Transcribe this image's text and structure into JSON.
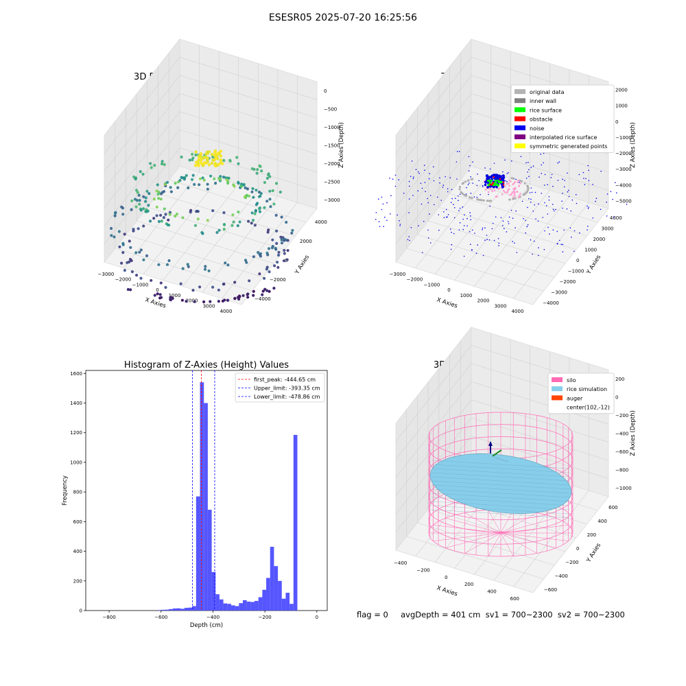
{
  "figure": {
    "suptitle": "ESESR05 2025-07-20 16:25:56"
  },
  "chart_data": [
    {
      "type": "scatter",
      "projection": "3d",
      "title": "3D Plot of Silo Interior(row data)",
      "xlabel": "X Axies",
      "ylabel": "Y Axies",
      "zlabel": "Z Axies (Depth)",
      "xticks": [
        "−3000",
        "−2000",
        "−1000",
        "0",
        "1000",
        "2000",
        "3000",
        "4000"
      ],
      "yticks": [
        "−4000",
        "−2000",
        "0",
        "2000",
        "4000"
      ],
      "zticks": [
        "0",
        "−500",
        "−1000",
        "−1500",
        "−2000",
        "−2500",
        "−3000"
      ],
      "xlim": [
        -3500,
        4500
      ],
      "ylim": [
        -4500,
        4500
      ],
      "zlim": [
        -3500,
        0
      ],
      "colormap": "viridis",
      "grid": true
    },
    {
      "type": "scatter",
      "projection": "3d",
      "title": "3D classify of Silo Interior",
      "ylabel": "Y Axies",
      "xlabel": "X Axies",
      "zlabel": "Z Axies (Depth)",
      "xticks": [
        "−3000",
        "−2000",
        "−1000",
        "0",
        "1000",
        "2000",
        "3000",
        "4000"
      ],
      "yticks": [
        "−4000",
        "−3000",
        "−2000",
        "−1000",
        "0",
        "1000",
        "2000",
        "3000",
        "4000"
      ],
      "zticks": [
        "2000",
        "1000",
        "0",
        "−1000",
        "−2000",
        "−3000",
        "−4000",
        "−5000"
      ],
      "legend_position": "top-right",
      "legend": [
        {
          "label": "original data",
          "color": "#b3b3b3"
        },
        {
          "label": "inner wall",
          "color": "#808080"
        },
        {
          "label": "rice surface",
          "color": "#00ff00"
        },
        {
          "label": "obstacle",
          "color": "#ff0000"
        },
        {
          "label": "noise",
          "color": "#0000ee"
        },
        {
          "label": "interpolated rice surface",
          "color": "#800080"
        },
        {
          "label": "symmetric generated points",
          "color": "#ffff00"
        }
      ],
      "grid": true
    },
    {
      "type": "bar",
      "title": "Histogram of Z-Axies (Height) Values",
      "xlabel": "Depth (cm)",
      "ylabel": "Frequency",
      "xlim": [
        -890,
        40
      ],
      "ylim": [
        0,
        1620
      ],
      "xticks": [
        -800,
        -600,
        -400,
        -200,
        0
      ],
      "xtick_labels": [
        "−800",
        "−600",
        "−400",
        "−200",
        "0"
      ],
      "yticks": [
        0,
        200,
        400,
        600,
        800,
        1000,
        1200,
        1400,
        1600
      ],
      "bar_color": "#4d4dff",
      "bin_width": 15,
      "bins": [
        {
          "x": -615,
          "v": 3
        },
        {
          "x": -600,
          "v": 5
        },
        {
          "x": -585,
          "v": 6
        },
        {
          "x": -570,
          "v": 10
        },
        {
          "x": -555,
          "v": 14
        },
        {
          "x": -540,
          "v": 15
        },
        {
          "x": -525,
          "v": 12
        },
        {
          "x": -510,
          "v": 18
        },
        {
          "x": -495,
          "v": 20
        },
        {
          "x": -480,
          "v": 30
        },
        {
          "x": -465,
          "v": 770
        },
        {
          "x": -450,
          "v": 1540
        },
        {
          "x": -435,
          "v": 1400
        },
        {
          "x": -420,
          "v": 680
        },
        {
          "x": -405,
          "v": 260
        },
        {
          "x": -390,
          "v": 110
        },
        {
          "x": -375,
          "v": 75
        },
        {
          "x": -360,
          "v": 48
        },
        {
          "x": -345,
          "v": 45
        },
        {
          "x": -330,
          "v": 35
        },
        {
          "x": -315,
          "v": 30
        },
        {
          "x": -300,
          "v": 50
        },
        {
          "x": -285,
          "v": 70
        },
        {
          "x": -270,
          "v": 60
        },
        {
          "x": -255,
          "v": 58
        },
        {
          "x": -240,
          "v": 65
        },
        {
          "x": -225,
          "v": 90
        },
        {
          "x": -210,
          "v": 140
        },
        {
          "x": -195,
          "v": 220
        },
        {
          "x": -180,
          "v": 430
        },
        {
          "x": -165,
          "v": 300
        },
        {
          "x": -150,
          "v": 200
        },
        {
          "x": -135,
          "v": 80
        },
        {
          "x": -120,
          "v": 120
        },
        {
          "x": -105,
          "v": 45
        },
        {
          "x": -90,
          "v": 1185
        }
      ],
      "vlines": [
        {
          "label": "first_peak: -444.65 cm",
          "x": -444.65,
          "color": "#ff0000"
        },
        {
          "label": "Upper_limit: -393.35 cm",
          "x": -393.35,
          "color": "#0000ff"
        },
        {
          "label": "Lower_limit: -478.86 cm",
          "x": -478.86,
          "color": "#0000ff"
        }
      ],
      "legend_position": "top-right"
    },
    {
      "type": "surface",
      "projection": "3d",
      "title": "3D simulation of Silo Interior",
      "xlabel": "X Axies",
      "ylabel": "Y Axies",
      "zlabel": "Z Axies (Depth)",
      "xticks": [
        "−400",
        "−200",
        "0",
        "200",
        "400",
        "600"
      ],
      "yticks": [
        "−600",
        "−400",
        "−200",
        "0",
        "200",
        "400",
        "600"
      ],
      "zticks": [
        "200",
        "0",
        "−200",
        "−400",
        "−600",
        "−800",
        "−1000"
      ],
      "legend_position": "top-right",
      "legend": [
        {
          "label": "silo",
          "color": "#ff69b4"
        },
        {
          "label": "rice simulation",
          "color": "#87ceeb"
        },
        {
          "label": "auger",
          "color": "#ff4500"
        },
        {
          "label": "center(102,-12)",
          "color": ""
        }
      ],
      "grid": true
    }
  ],
  "status": {
    "text": "flag = 0     avgDepth = 401 cm  sv1 = 700~2300  sv2 = 700~2300"
  }
}
